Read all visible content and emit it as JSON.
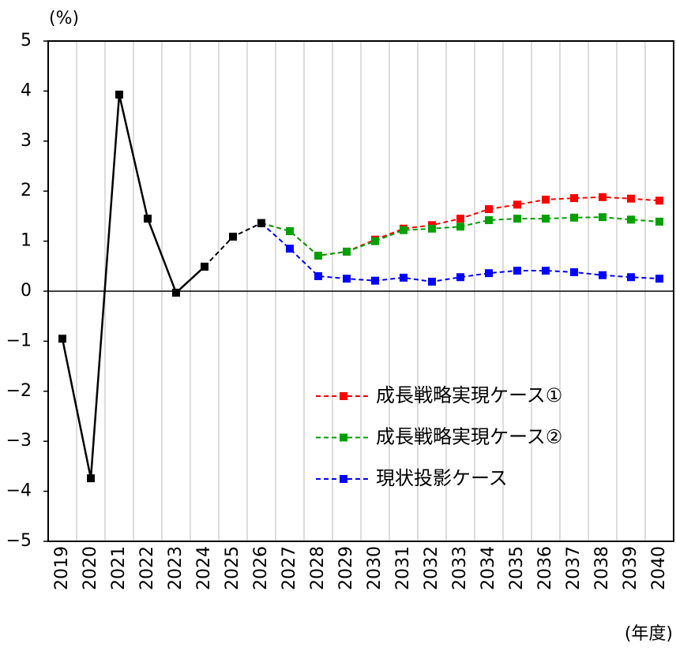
{
  "chart_data": {
    "type": "line",
    "y_label": "(%)",
    "x_label": "(年度)",
    "categories": [
      "2019",
      "2020",
      "2021",
      "2022",
      "2023",
      "2024",
      "2025",
      "2026",
      "2027",
      "2028",
      "2029",
      "2030",
      "2031",
      "2032",
      "2033",
      "2034",
      "2035",
      "2036",
      "2037",
      "2038",
      "2039",
      "2040"
    ],
    "ylim": [
      -5,
      5
    ],
    "yticks": [
      5,
      4,
      3,
      2,
      1,
      0,
      {
        "value": -1,
        "label": "−1"
      },
      {
        "value": -2,
        "label": "−2"
      },
      {
        "value": -3,
        "label": "−3"
      },
      {
        "value": -4,
        "label": "−4"
      },
      {
        "value": -5,
        "label": "−5"
      }
    ],
    "grid": true,
    "series": [
      {
        "name": "成長戦略実現ケース①",
        "color": "#ff0000",
        "dashed": true,
        "legend": true,
        "values": [
          null,
          null,
          null,
          null,
          null,
          null,
          null,
          1.36,
          1.2,
          0.71,
          0.79,
          1.03,
          1.25,
          1.32,
          1.45,
          1.64,
          1.73,
          1.83,
          1.86,
          1.88,
          1.85,
          1.81
        ]
      },
      {
        "name": "成長戦略実現ケース②",
        "color": "#00a000",
        "dashed": true,
        "legend": true,
        "values": [
          null,
          null,
          null,
          null,
          null,
          null,
          null,
          1.36,
          1.2,
          0.71,
          0.79,
          1.0,
          1.22,
          1.25,
          1.29,
          1.42,
          1.45,
          1.45,
          1.47,
          1.48,
          1.43,
          1.39
        ]
      },
      {
        "name": "現状投影ケース",
        "color": "#0000ff",
        "dashed": true,
        "legend": true,
        "values": [
          null,
          null,
          null,
          null,
          null,
          null,
          null,
          1.36,
          0.85,
          0.3,
          0.25,
          0.21,
          0.27,
          0.19,
          0.28,
          0.36,
          0.41,
          0.41,
          0.38,
          0.32,
          0.28,
          0.25
        ]
      },
      {
        "color": "#000000",
        "dashed": true,
        "legend": false,
        "values": [
          null,
          null,
          null,
          null,
          null,
          0.49,
          1.09,
          1.36,
          null,
          null,
          null,
          null,
          null,
          null,
          null,
          null,
          null,
          null,
          null,
          null,
          null,
          null
        ]
      },
      {
        "color": "#000000",
        "dashed": false,
        "legend": false,
        "values": [
          -0.95,
          -3.74,
          3.93,
          1.45,
          -0.03,
          0.49,
          null,
          null,
          null,
          null,
          null,
          null,
          null,
          null,
          null,
          null,
          null,
          null,
          null,
          null,
          null,
          null
        ]
      }
    ]
  }
}
